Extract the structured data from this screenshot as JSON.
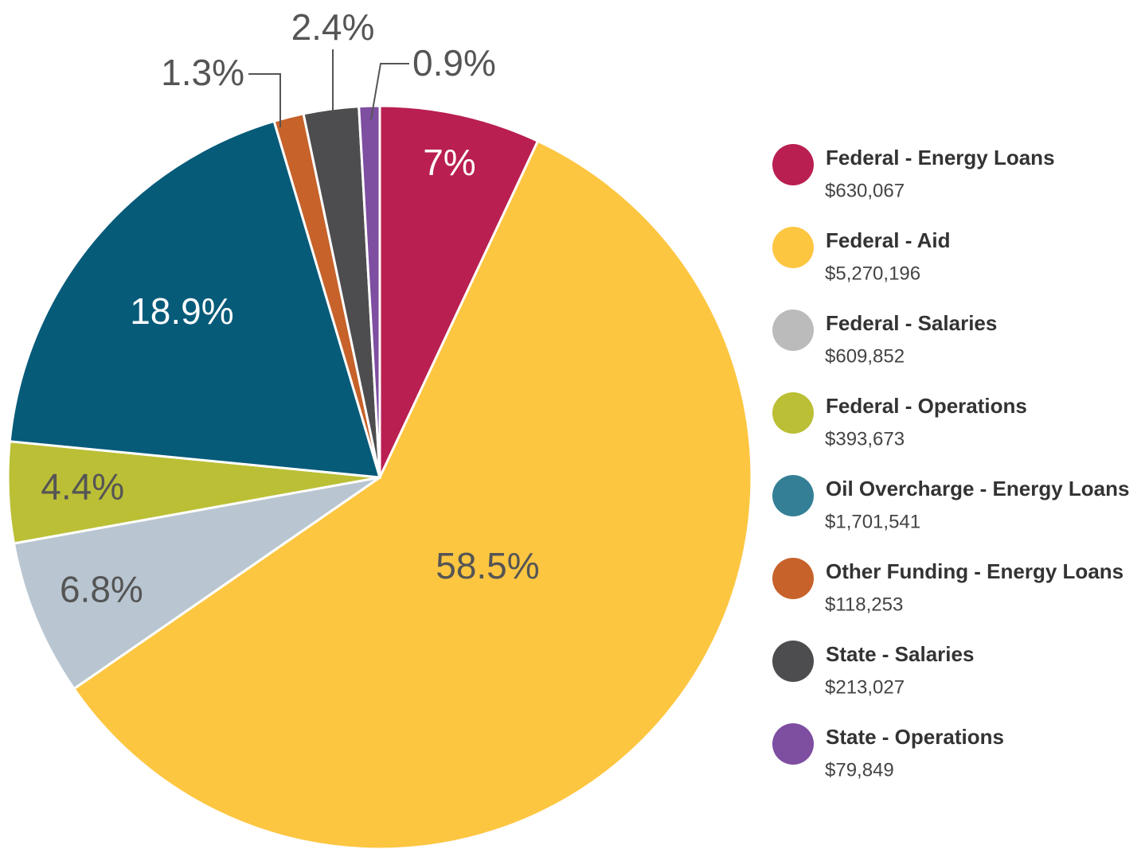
{
  "chart_data": {
    "type": "pie",
    "categories": [
      "Federal - Energy Loans",
      "Federal - Aid",
      "Federal - Salaries",
      "Federal - Operations",
      "Oil Overcharge - Energy Loans",
      "Other Funding - Energy Loans",
      "State - Salaries",
      "State - Operations"
    ],
    "values": [
      7,
      58.5,
      6.8,
      4.4,
      18.9,
      1.3,
      2.4,
      0.9
    ],
    "value_labels": [
      "7%",
      "58.5%",
      "6.8%",
      "4.4%",
      "18.9%",
      "1.3%",
      "2.4%",
      "0.9%"
    ],
    "colors": [
      "#b91f50",
      "#fdc641",
      "#b9c6d1",
      "#bbbf36",
      "#065b79",
      "#c6622a",
      "#4d4d4f",
      "#7e4ea1"
    ],
    "legend_colors": [
      "#b91f50",
      "#fdc641",
      "#bbbbbb",
      "#bbbf36",
      "#347f96",
      "#c6622a",
      "#4d4d4f",
      "#7e4ea1"
    ],
    "amounts": [
      630067,
      5270196,
      609852,
      393673,
      1701541,
      118253,
      213027,
      79849
    ],
    "amount_labels": [
      "$630,067",
      "$5,270,196",
      "$609,852",
      "$393,673",
      "$1,701,541",
      "$118,253",
      "$213,027",
      "$79,849"
    ]
  }
}
